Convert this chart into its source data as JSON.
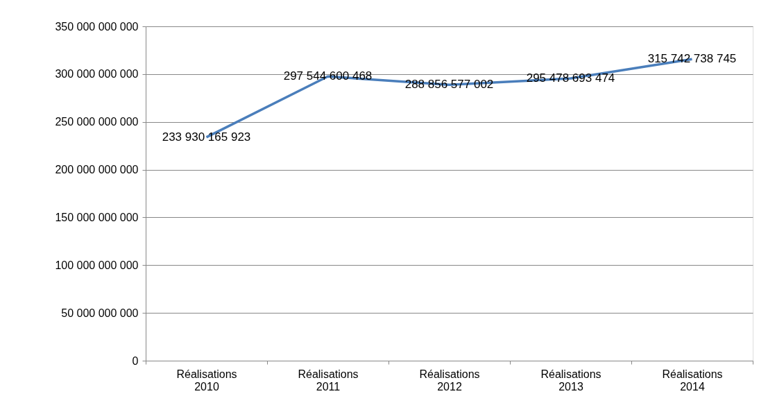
{
  "chart_data": {
    "type": "line",
    "categories": [
      "Réalisations 2010",
      "Réalisations 2011",
      "Réalisations 2012",
      "Réalisations 2013",
      "Réalisations 2014"
    ],
    "series": [
      {
        "color": "#4a7ebb",
        "values": [
          233930165923,
          297544600468,
          288856577002,
          295478693474,
          315742738745
        ],
        "value_labels": [
          "233 930 165 923",
          "297 544 600 468",
          "288 856 577 002",
          "295 478 693 474",
          "315 742 738 745"
        ]
      }
    ],
    "ylim": [
      0,
      350000000000
    ],
    "yticks": [
      {
        "value": 0,
        "label": "0"
      },
      {
        "value": 50000000000,
        "label": "50 000 000 000"
      },
      {
        "value": 100000000000,
        "label": "100 000 000 000"
      },
      {
        "value": 150000000000,
        "label": "150 000 000 000"
      },
      {
        "value": 200000000000,
        "label": "200 000 000 000"
      },
      {
        "value": 250000000000,
        "label": "250 000 000 000"
      },
      {
        "value": 300000000000,
        "label": "300 000 000 000"
      },
      {
        "value": 350000000000,
        "label": "350 000 000 000"
      }
    ],
    "grid": "y",
    "marker": "none",
    "legend": false
  }
}
